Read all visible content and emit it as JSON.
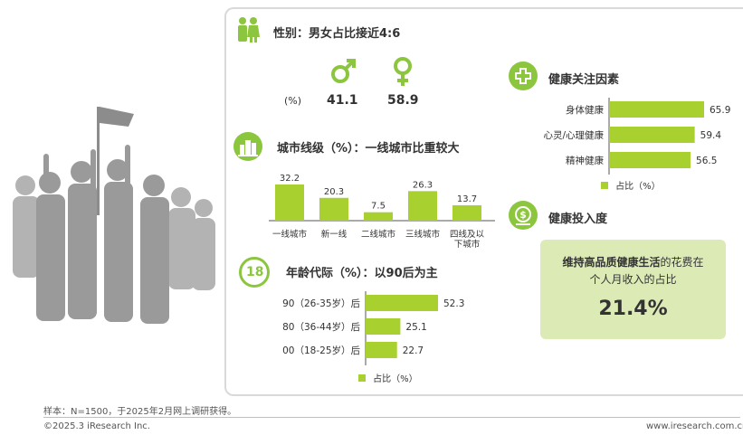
{
  "gender": {
    "title": "性别：男女占比接近4:6",
    "unit": "(%)",
    "male_value": "41.1",
    "female_value": "58.9"
  },
  "city": {
    "title": "城市线级（%）：一线城市比重较大"
  },
  "age": {
    "title": "年龄代际（%）：以90后为主",
    "legend": "占比（%）"
  },
  "health": {
    "title": "健康关注因素",
    "legend": "占比（%）"
  },
  "invest": {
    "title": "健康投入度",
    "line1_bold": "维持高品质健康生活",
    "line1_rest": "的花费在",
    "line2": "个人月收入的占比",
    "value": "21.4%"
  },
  "footer": {
    "sample": "样本：N=1500，于2025年2月网上调研获得。",
    "copyright": "©2025.3 iResearch Inc.",
    "website": "www.iresearch.com.cn"
  },
  "colors": {
    "accent": "#8cc63f",
    "bar": "#a8d12f",
    "box": "#dcebb6",
    "crowd": "#a6a6a6"
  },
  "chart_data": [
    {
      "type": "bar",
      "title": "城市线级（%）：一线城市比重较大",
      "categories": [
        "一线城市",
        "新一线",
        "二线城市",
        "三线城市",
        "四线及以下城市"
      ],
      "values": [
        32.2,
        20.3,
        7.5,
        26.3,
        13.7
      ]
    },
    {
      "type": "bar",
      "orientation": "horizontal",
      "title": "年龄代际（%）：以90后为主",
      "categories": [
        "90（26-35岁）后",
        "80（36-44岁）后",
        "00（18-25岁）后"
      ],
      "values": [
        52.3,
        25.1,
        22.7
      ],
      "legend": "占比（%）"
    },
    {
      "type": "bar",
      "orientation": "horizontal",
      "title": "健康关注因素",
      "categories": [
        "身体健康",
        "心灵/心理健康",
        "精神健康"
      ],
      "values": [
        65.9,
        59.4,
        56.5
      ],
      "legend": "占比（%）"
    }
  ]
}
